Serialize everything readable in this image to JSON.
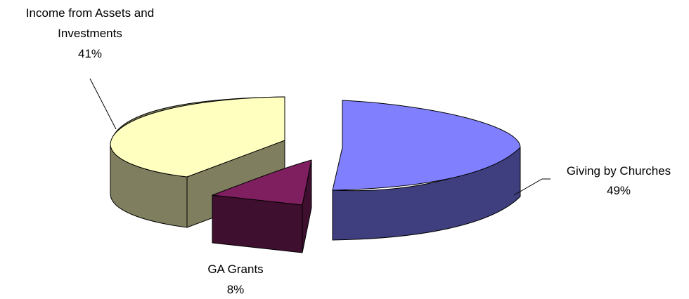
{
  "chart_data": {
    "type": "pie",
    "style": "3d-exploded",
    "slices": [
      {
        "label_lines": [
          "Giving by Churches"
        ],
        "percent_label": "49%",
        "value": 49,
        "top_color": "#8080ff",
        "side_color": "#3f3f7f"
      },
      {
        "label_lines": [
          "GA Grants"
        ],
        "percent_label": "8%",
        "value": 8,
        "top_color": "#7f1f5f",
        "side_color": "#3f0f2f"
      },
      {
        "label_lines": [
          "Income from Assets and",
          "Investments"
        ],
        "percent_label": "41%",
        "value": 41,
        "top_color": "#ffffc0",
        "side_color": "#7f7f5f"
      }
    ]
  }
}
